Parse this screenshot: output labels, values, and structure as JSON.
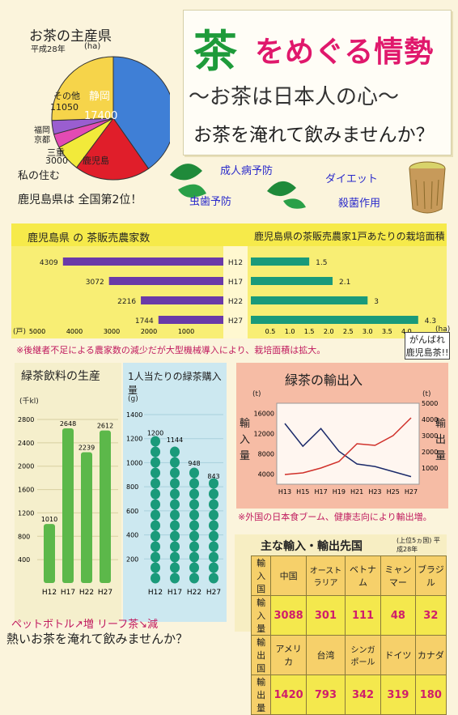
{
  "title": {
    "cha": "茶",
    "main": "をめぐる情勢",
    "sub": "〜お茶は日本人の心〜",
    "question": "お茶を淹れて飲みませんか？"
  },
  "pie": {
    "title": "お茶の主産県",
    "year": "平成28年",
    "unit": "(ha)",
    "slices": [
      {
        "label": "静岡",
        "value": "17400",
        "color": "#3f7fd6"
      },
      {
        "label": "鹿児島",
        "value": "8600",
        "color": "#e01e2a"
      },
      {
        "label": "三重",
        "value": "3000",
        "color": "#f2ea3a"
      },
      {
        "label": "京都",
        "value": "1580",
        "color": "#e34bb3"
      },
      {
        "label": "福岡",
        "value": "1560",
        "color": "#9a5ed0"
      },
      {
        "label": "その他",
        "value": "11050",
        "color": "#f6d44a"
      }
    ],
    "note1": "私の住む",
    "note2": "鹿児島県は 全国第2位！"
  },
  "bubbles": {
    "b1": "成人病予防",
    "b2": "ダイエット",
    "b3": "虫歯予防",
    "b4": "殺菌作用"
  },
  "bars": {
    "left_title": "鹿児島県 の 茶販売農家数",
    "right_title": "鹿児島県の茶販売農家1戸あたりの栽培面積",
    "years": [
      "H12",
      "H17",
      "H22",
      "H27"
    ],
    "farms": [
      4309,
      3072,
      2216,
      1744
    ],
    "area": [
      1.5,
      2.1,
      3.0,
      4.3
    ],
    "left_axis": [
      "5000",
      "4000",
      "3000",
      "2000",
      "1000"
    ],
    "left_unit": "(戸)",
    "right_axis": [
      "0.5",
      "1.0",
      "1.5",
      "2.0",
      "2.5",
      "3.0",
      "3.5",
      "4.0"
    ],
    "right_unit": "(ha)",
    "note": "※後継者不足による農家数の減少だが大型機械導入により、栽培面積は拡大。",
    "cheer": "がんばれ 鹿児島茶!!"
  },
  "drinks": {
    "title": "緑茶飲料の生産",
    "unit": "(千kl)",
    "yaxis": [
      "2800",
      "2400",
      "2000",
      "1600",
      "1200",
      "800",
      "400"
    ],
    "years": [
      "H12",
      "H17",
      "H22",
      "H27"
    ],
    "values": [
      1010,
      2648,
      2239,
      2612
    ]
  },
  "buy": {
    "title": "1人当たりの緑茶購入量",
    "unit": "(g)",
    "yaxis": [
      "1400",
      "1200",
      "1000",
      "800",
      "600",
      "400",
      "200"
    ],
    "years": [
      "H12",
      "H17",
      "H22",
      "H27"
    ],
    "values": [
      1200,
      1144,
      948,
      843
    ]
  },
  "trade": {
    "title": "緑茶の輸出入",
    "left_unit": "(t)",
    "right_unit": "(t)",
    "left_axis": [
      "16000",
      "12000",
      "8000",
      "4000"
    ],
    "right_axis": [
      "5000",
      "4000",
      "3000",
      "2000",
      "1000"
    ],
    "left_label": "輸入量",
    "right_label": "輸出量",
    "years": [
      "H13",
      "H15",
      "H17",
      "H19",
      "H21",
      "H23",
      "H25",
      "H27"
    ],
    "import": [
      14000,
      9500,
      13000,
      8500,
      6000,
      5500,
      4500,
      3500
    ],
    "export": [
      600,
      700,
      1000,
      1400,
      2500,
      2400,
      3000,
      4100
    ],
    "note": "※外国の日本食ブーム、健康志向により輸出増。"
  },
  "table": {
    "title": "主な輸入・輸出先国",
    "subtitle": "(上位5ヵ国) 平成28年",
    "import_head": "輸入国",
    "import_label": "輸入量",
    "import_countries": [
      "中国",
      "オーストラリア",
      "ベトナム",
      "ミャンマー",
      "ブラジル"
    ],
    "import_values": [
      "3088",
      "301",
      "111",
      "48",
      "32"
    ],
    "export_head": "輸出国",
    "export_label": "輸出量",
    "export_countries": [
      "アメリカ",
      "台湾",
      "シンガポール",
      "ドイツ",
      "カナダ"
    ],
    "export_values": [
      "1420",
      "793",
      "342",
      "319",
      "180"
    ]
  },
  "footer": {
    "line1": "ペットボトル↗増 リーフ茶↘減",
    "line2": "熱いお茶を淹れて飲みませんか？"
  }
}
